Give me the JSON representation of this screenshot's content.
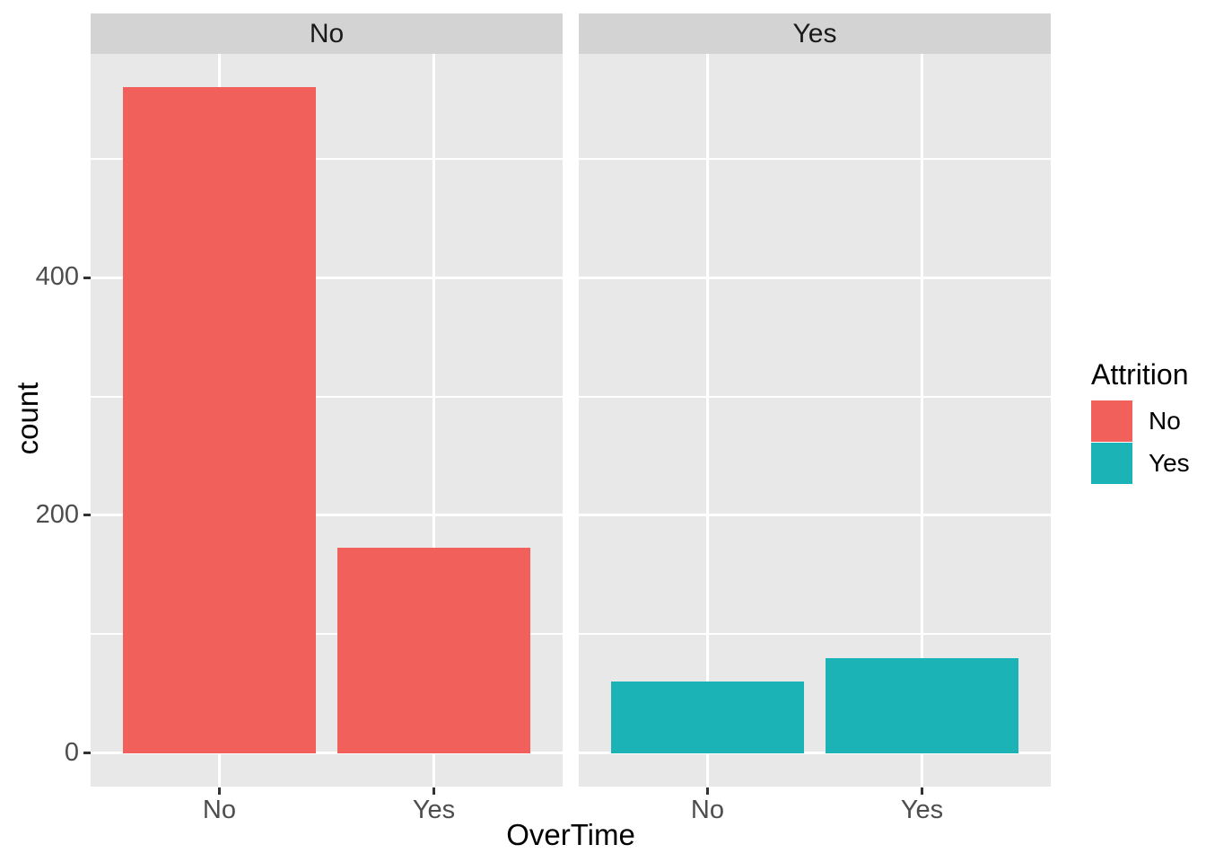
{
  "chart_data": {
    "type": "bar",
    "xlabel": "OverTime",
    "ylabel": "count",
    "x_variable": "OverTime",
    "facet_variable": "Attrition",
    "categories": [
      "No",
      "Yes"
    ],
    "facets": [
      {
        "label": "No",
        "series": "No",
        "values": [
          560,
          173
        ]
      },
      {
        "label": "Yes",
        "series": "Yes",
        "values": [
          60,
          80
        ]
      }
    ],
    "y_ticks": [
      0,
      200,
      400
    ],
    "y_minor_gridlines": [
      100,
      300,
      500
    ],
    "ylim": [
      -28,
      588
    ],
    "grid": true,
    "legend": {
      "title": "Attrition",
      "position": "right",
      "entries": [
        {
          "label": "No",
          "color": "#F2605C"
        },
        {
          "label": "Yes",
          "color": "#1BB3B5"
        }
      ]
    },
    "theme": {
      "panel_bg": "#E8E8E8",
      "strip_bg": "#D3D3D3",
      "grid_color": "#FFFFFF",
      "tick_color": "#333333",
      "tick_label_color": "#4D4D4D",
      "strip_text_color": "#1A1A1A",
      "axis_title_color": "#000000"
    }
  }
}
